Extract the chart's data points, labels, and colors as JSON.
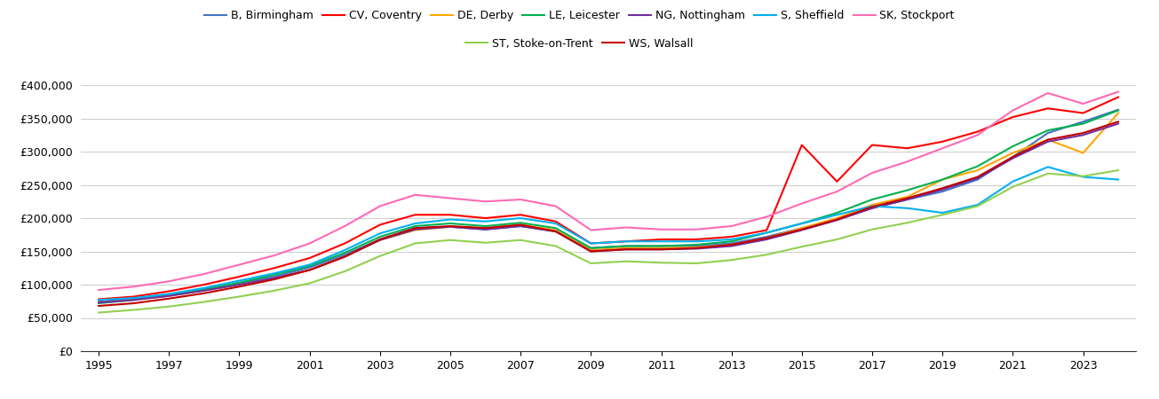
{
  "title": "",
  "years": [
    1995,
    1996,
    1997,
    1998,
    1999,
    2000,
    2001,
    2002,
    2003,
    2004,
    2005,
    2006,
    2007,
    2008,
    2009,
    2010,
    2011,
    2012,
    2013,
    2014,
    2015,
    2016,
    2017,
    2018,
    2019,
    2020,
    2021,
    2022,
    2023,
    2024
  ],
  "series": {
    "B, Birmingham": {
      "color": "#4472C4",
      "values": [
        75000,
        78000,
        84000,
        92000,
        102000,
        112000,
        126000,
        145000,
        168000,
        185000,
        187000,
        183000,
        188000,
        180000,
        155000,
        158000,
        158000,
        158000,
        162000,
        172000,
        185000,
        198000,
        215000,
        228000,
        240000,
        258000,
        292000,
        328000,
        345000,
        363000
      ]
    },
    "CV, Coventry": {
      "color": "#FF0000",
      "values": [
        78000,
        82000,
        90000,
        100000,
        112000,
        125000,
        140000,
        162000,
        190000,
        205000,
        205000,
        200000,
        205000,
        195000,
        162000,
        165000,
        168000,
        168000,
        172000,
        182000,
        310000,
        255000,
        310000,
        305000,
        315000,
        330000,
        352000,
        365000,
        358000,
        382000
      ]
    },
    "DE, Derby": {
      "color": "#FFA500",
      "values": [
        73000,
        77000,
        83000,
        91000,
        100000,
        110000,
        122000,
        142000,
        167000,
        182000,
        187000,
        185000,
        190000,
        182000,
        152000,
        155000,
        155000,
        156000,
        160000,
        170000,
        185000,
        200000,
        220000,
        232000,
        258000,
        272000,
        298000,
        318000,
        298000,
        358000
      ]
    },
    "LE, Leicester": {
      "color": "#00B050",
      "values": [
        72000,
        77000,
        84000,
        93000,
        103000,
        115000,
        128000,
        148000,
        172000,
        188000,
        192000,
        188000,
        193000,
        185000,
        155000,
        158000,
        158000,
        160000,
        165000,
        178000,
        192000,
        208000,
        228000,
        242000,
        258000,
        278000,
        308000,
        332000,
        342000,
        362000
      ]
    },
    "NG, Nottingham": {
      "color": "#7030A0",
      "values": [
        73000,
        77000,
        83000,
        91000,
        100000,
        110000,
        122000,
        142000,
        167000,
        183000,
        187000,
        183000,
        188000,
        180000,
        150000,
        153000,
        153000,
        154000,
        158000,
        168000,
        182000,
        197000,
        215000,
        228000,
        243000,
        260000,
        290000,
        315000,
        325000,
        342000
      ]
    },
    "S, Sheffield": {
      "color": "#00B0F0",
      "values": [
        77000,
        80000,
        86000,
        95000,
        106000,
        117000,
        130000,
        152000,
        177000,
        192000,
        198000,
        195000,
        200000,
        192000,
        162000,
        165000,
        165000,
        165000,
        168000,
        178000,
        192000,
        205000,
        218000,
        215000,
        208000,
        220000,
        255000,
        277000,
        262000,
        258000
      ]
    },
    "SK, Stockport": {
      "color": "#FF69B4",
      "values": [
        92000,
        97000,
        105000,
        116000,
        130000,
        144000,
        162000,
        188000,
        218000,
        235000,
        230000,
        225000,
        228000,
        218000,
        182000,
        186000,
        183000,
        183000,
        188000,
        202000,
        222000,
        240000,
        268000,
        285000,
        305000,
        325000,
        362000,
        388000,
        372000,
        390000
      ]
    },
    "ST, Stoke-on-Trent": {
      "color": "#92D050",
      "values": [
        58000,
        62000,
        67000,
        74000,
        82000,
        91000,
        102000,
        120000,
        143000,
        162000,
        167000,
        163000,
        167000,
        158000,
        132000,
        135000,
        133000,
        132000,
        137000,
        145000,
        157000,
        168000,
        183000,
        193000,
        205000,
        218000,
        247000,
        267000,
        263000,
        272000
      ]
    },
    "WS, Walsall": {
      "color": "#C00000",
      "values": [
        68000,
        72000,
        79000,
        87000,
        97000,
        108000,
        122000,
        142000,
        168000,
        185000,
        188000,
        185000,
        190000,
        180000,
        150000,
        153000,
        153000,
        155000,
        160000,
        170000,
        183000,
        198000,
        217000,
        230000,
        245000,
        262000,
        292000,
        318000,
        328000,
        345000
      ]
    }
  },
  "ylim": [
    0,
    420000
  ],
  "yticks": [
    0,
    50000,
    100000,
    150000,
    200000,
    250000,
    300000,
    350000,
    400000
  ],
  "xticks": [
    1995,
    1997,
    1999,
    2001,
    2003,
    2005,
    2007,
    2009,
    2011,
    2013,
    2015,
    2017,
    2019,
    2021,
    2023
  ],
  "background_color": "#ffffff",
  "grid_color": "#d0d0d0",
  "legend_row1": [
    "B, Birmingham",
    "CV, Coventry",
    "DE, Derby",
    "LE, Leicester",
    "NG, Nottingham",
    "S, Sheffield",
    "SK, Stockport"
  ],
  "legend_row2": [
    "ST, Stoke-on-Trent",
    "WS, Walsall"
  ]
}
